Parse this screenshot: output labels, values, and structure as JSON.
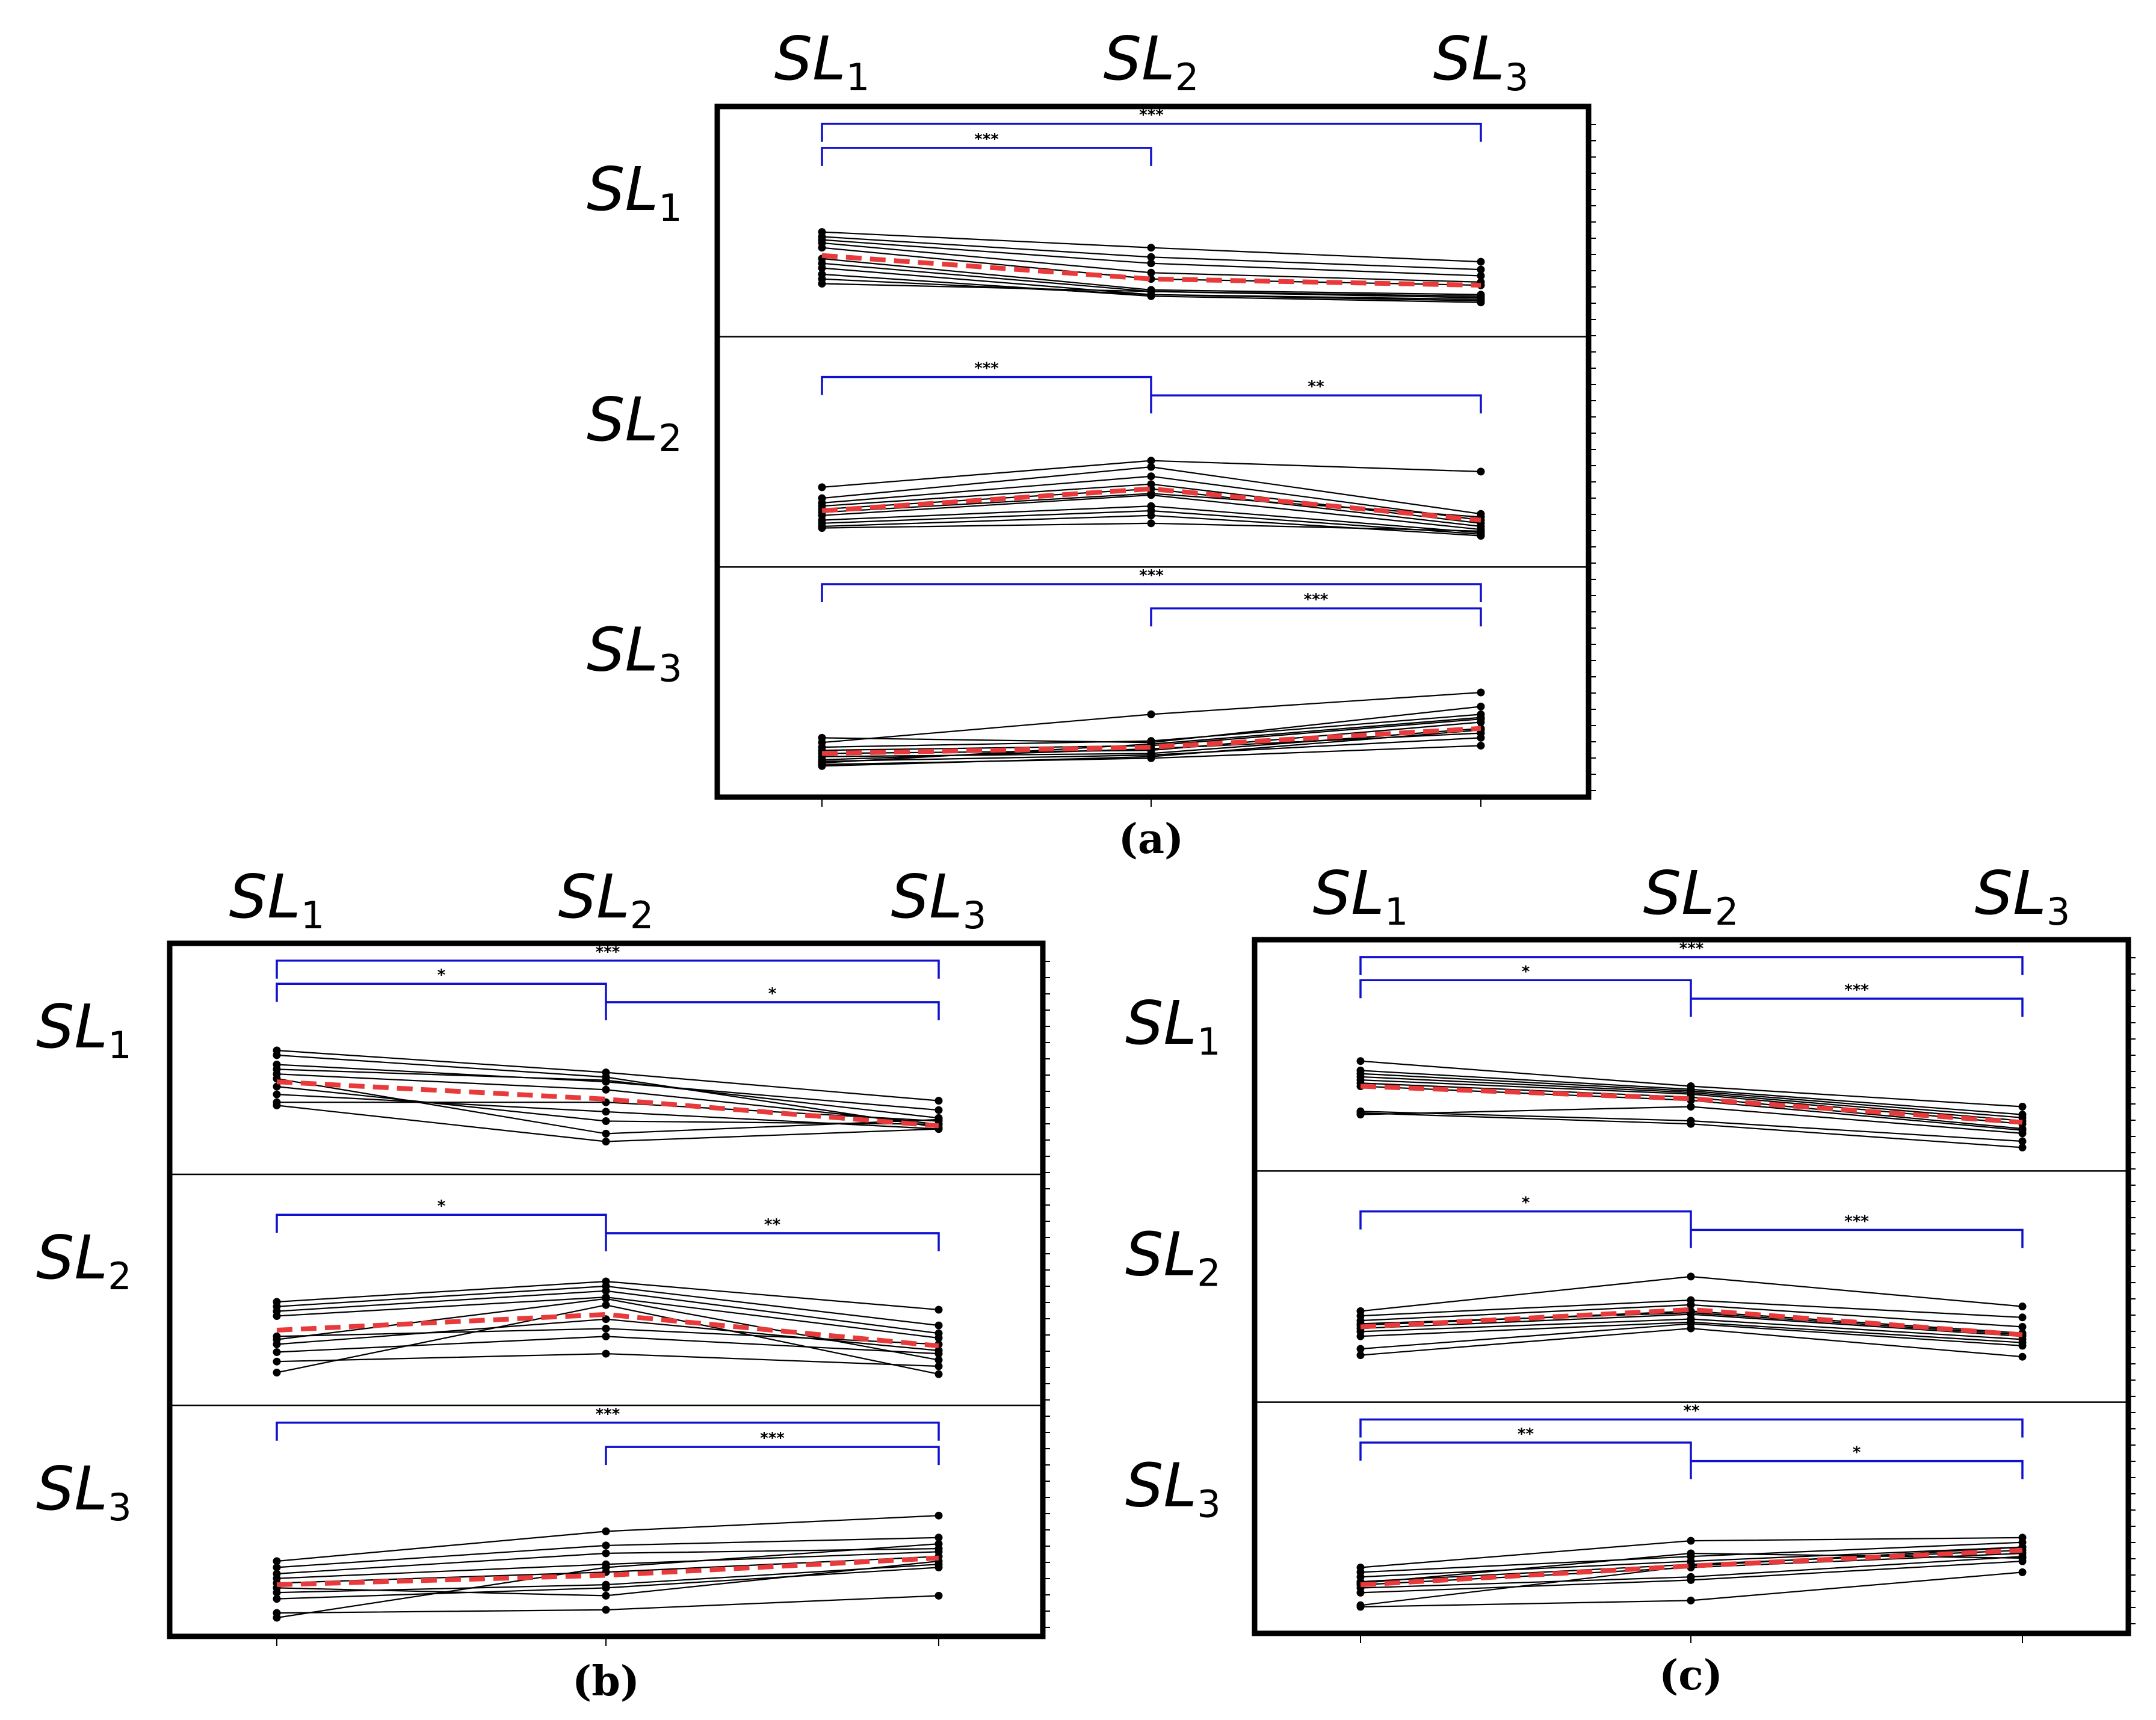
{
  "figure": {
    "conditions": [
      "SL1",
      "SL2",
      "SL3"
    ],
    "condition_labels": [
      {
        "base": "SL",
        "sub": "1"
      },
      {
        "base": "SL",
        "sub": "2"
      },
      {
        "base": "SL",
        "sub": "3"
      }
    ],
    "colors": {
      "subject_lines": "#000000",
      "mean_line": "#e83a3a",
      "brackets": "#1010d0"
    }
  },
  "chart_data": [
    {
      "type": "line",
      "caption": "(a)",
      "x": [
        "SL1",
        "SL2",
        "SL3"
      ],
      "ylim": [
        0,
        1
      ],
      "rows": [
        {
          "label": "SL1",
          "subjects": [
            [
              0.61,
              0.51,
              0.42
            ],
            [
              0.58,
              0.45,
              0.37
            ],
            [
              0.56,
              0.41,
              0.33
            ],
            [
              0.54,
              0.35,
              0.29
            ],
            [
              0.51,
              0.31,
              0.27
            ],
            [
              0.44,
              0.24,
              0.21
            ],
            [
              0.41,
              0.23,
              0.19
            ],
            [
              0.38,
              0.21,
              0.17
            ],
            [
              0.34,
              0.2,
              0.16
            ],
            [
              0.31,
              0.21,
              0.18
            ],
            [
              0.28,
              0.23,
              0.2
            ]
          ],
          "mean": [
            0.46,
            0.31,
            0.27
          ],
          "brackets": [
            {
              "from": 0,
              "to": 2,
              "stars": "***"
            },
            {
              "from": 0,
              "to": 1,
              "stars": "***"
            }
          ]
        },
        {
          "label": "SL2",
          "subjects": [
            [
              0.45,
              0.62,
              0.55
            ],
            [
              0.38,
              0.58,
              0.28
            ],
            [
              0.35,
              0.52,
              0.24
            ],
            [
              0.33,
              0.47,
              0.22
            ],
            [
              0.31,
              0.44,
              0.2
            ],
            [
              0.29,
              0.41,
              0.26
            ],
            [
              0.27,
              0.4,
              0.18
            ],
            [
              0.24,
              0.33,
              0.16
            ],
            [
              0.22,
              0.3,
              0.15
            ],
            [
              0.2,
              0.27,
              0.14
            ],
            [
              0.19,
              0.22,
              0.17
            ]
          ],
          "mean": [
            0.3,
            0.44,
            0.24
          ],
          "brackets": [
            {
              "from": 0,
              "to": 1,
              "stars": "***"
            },
            {
              "from": 1,
              "to": 2,
              "stars": "**"
            }
          ]
        },
        {
          "label": "SL3",
          "subjects": [
            [
              0.32,
              0.29,
              0.52
            ],
            [
              0.29,
              0.47,
              0.61
            ],
            [
              0.26,
              0.3,
              0.47
            ],
            [
              0.24,
              0.27,
              0.44
            ],
            [
              0.22,
              0.24,
              0.42
            ],
            [
              0.2,
              0.22,
              0.38
            ],
            [
              0.18,
              0.25,
              0.35
            ],
            [
              0.17,
              0.21,
              0.32
            ],
            [
              0.15,
              0.19,
              0.27
            ],
            [
              0.14,
              0.2,
              0.37
            ],
            [
              0.16,
              0.28,
              0.45
            ]
          ],
          "mean": [
            0.22,
            0.26,
            0.38
          ],
          "brackets": [
            {
              "from": 0,
              "to": 2,
              "stars": "***"
            },
            {
              "from": 1,
              "to": 2,
              "stars": "***"
            }
          ]
        }
      ]
    },
    {
      "type": "line",
      "caption": "(b)",
      "x": [
        "SL1",
        "SL2",
        "SL3"
      ],
      "ylim": [
        0,
        1
      ],
      "rows": [
        {
          "label": "SL1",
          "subjects": [
            [
              0.73,
              0.59,
              0.41
            ],
            [
              0.7,
              0.56,
              0.24
            ],
            [
              0.64,
              0.53,
              0.35
            ],
            [
              0.61,
              0.54,
              0.3
            ],
            [
              0.58,
              0.48,
              0.26
            ],
            [
              0.55,
              0.2,
              0.29
            ],
            [
              0.5,
              0.28,
              0.26
            ],
            [
              0.45,
              0.34,
              0.23
            ],
            [
              0.4,
              0.4,
              0.28
            ],
            [
              0.38,
              0.15,
              0.23
            ]
          ],
          "mean": [
            0.53,
            0.42,
            0.25
          ],
          "brackets": [
            {
              "from": 0,
              "to": 2,
              "stars": "***"
            },
            {
              "from": 0,
              "to": 1,
              "stars": "*"
            },
            {
              "from": 1,
              "to": 2,
              "stars": "*"
            }
          ]
        },
        {
          "label": "SL2",
          "subjects": [
            [
              0.6,
              0.73,
              0.55
            ],
            [
              0.57,
              0.7,
              0.45
            ],
            [
              0.54,
              0.67,
              0.4
            ],
            [
              0.51,
              0.63,
              0.37
            ],
            [
              0.38,
              0.43,
              0.33
            ],
            [
              0.33,
              0.49,
              0.29
            ],
            [
              0.28,
              0.38,
              0.27
            ],
            [
              0.22,
              0.27,
              0.19
            ],
            [
              0.15,
              0.58,
              0.14
            ],
            [
              0.36,
              0.62,
              0.23
            ]
          ],
          "mean": [
            0.42,
            0.52,
            0.32
          ],
          "brackets": [
            {
              "from": 0,
              "to": 1,
              "stars": "*"
            },
            {
              "from": 1,
              "to": 2,
              "stars": "**"
            }
          ]
        },
        {
          "label": "SL3",
          "subjects": [
            [
              0.42,
              0.61,
              0.71
            ],
            [
              0.38,
              0.52,
              0.57
            ],
            [
              0.34,
              0.47,
              0.5
            ],
            [
              0.31,
              0.4,
              0.48
            ],
            [
              0.28,
              0.35,
              0.45
            ],
            [
              0.25,
              0.2,
              0.42
            ],
            [
              0.22,
              0.27,
              0.4
            ],
            [
              0.18,
              0.25,
              0.38
            ],
            [
              0.09,
              0.11,
              0.2
            ],
            [
              0.06,
              0.38,
              0.53
            ]
          ],
          "mean": [
            0.27,
            0.33,
            0.44
          ],
          "brackets": [
            {
              "from": 0,
              "to": 2,
              "stars": "***"
            },
            {
              "from": 1,
              "to": 2,
              "stars": "***"
            }
          ]
        }
      ]
    },
    {
      "type": "line",
      "caption": "(c)",
      "x": [
        "SL1",
        "SL2",
        "SL3"
      ],
      "ylim": [
        0,
        1
      ],
      "rows": [
        {
          "label": "SL1",
          "subjects": [
            [
              0.64,
              0.48,
              0.35
            ],
            [
              0.58,
              0.46,
              0.3
            ],
            [
              0.56,
              0.45,
              0.28
            ],
            [
              0.54,
              0.44,
              0.26
            ],
            [
              0.52,
              0.43,
              0.24
            ],
            [
              0.5,
              0.41,
              0.21
            ],
            [
              0.48,
              0.39,
              0.2
            ],
            [
              0.32,
              0.26,
              0.13
            ],
            [
              0.31,
              0.24,
              0.09
            ],
            [
              0.3,
              0.35,
              0.18
            ]
          ],
          "mean": [
            0.48,
            0.4,
            0.25
          ],
          "brackets": [
            {
              "from": 0,
              "to": 2,
              "stars": "***"
            },
            {
              "from": 0,
              "to": 1,
              "stars": "*"
            },
            {
              "from": 1,
              "to": 2,
              "stars": "***"
            }
          ]
        },
        {
          "label": "SL2",
          "subjects": [
            [
              0.52,
              0.74,
              0.55
            ],
            [
              0.49,
              0.59,
              0.48
            ],
            [
              0.46,
              0.56,
              0.42
            ],
            [
              0.43,
              0.52,
              0.38
            ],
            [
              0.41,
              0.5,
              0.36
            ],
            [
              0.39,
              0.47,
              0.34
            ],
            [
              0.36,
              0.45,
              0.32
            ],
            [
              0.28,
              0.44,
              0.3
            ],
            [
              0.24,
              0.41,
              0.23
            ],
            [
              0.44,
              0.51,
              0.37
            ]
          ],
          "mean": [
            0.42,
            0.53,
            0.37
          ],
          "brackets": [
            {
              "from": 0,
              "to": 1,
              "stars": "*"
            },
            {
              "from": 1,
              "to": 2,
              "stars": "***"
            }
          ]
        },
        {
          "label": "SL3",
          "subjects": [
            [
              0.36,
              0.53,
              0.55
            ],
            [
              0.33,
              0.43,
              0.52
            ],
            [
              0.3,
              0.4,
              0.49
            ],
            [
              0.27,
              0.38,
              0.47
            ],
            [
              0.25,
              0.36,
              0.45
            ],
            [
              0.23,
              0.3,
              0.43
            ],
            [
              0.2,
              0.28,
              0.4
            ],
            [
              0.11,
              0.15,
              0.33
            ],
            [
              0.12,
              0.37,
              0.49
            ],
            [
              0.26,
              0.45,
              0.42
            ]
          ],
          "mean": [
            0.25,
            0.37,
            0.47
          ],
          "brackets": [
            {
              "from": 0,
              "to": 2,
              "stars": "**"
            },
            {
              "from": 0,
              "to": 1,
              "stars": "**"
            },
            {
              "from": 1,
              "to": 2,
              "stars": "*"
            }
          ]
        }
      ]
    }
  ]
}
